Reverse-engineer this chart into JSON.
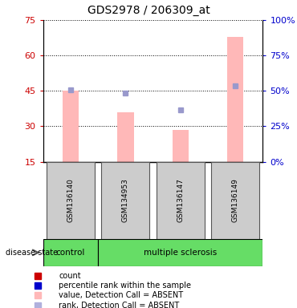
{
  "title": "GDS2978 / 206309_at",
  "samples": [
    "GSM136140",
    "GSM134953",
    "GSM136147",
    "GSM136149"
  ],
  "pink_bar_values": [
    45.0,
    36.0,
    28.5,
    68.0
  ],
  "blue_square_values": [
    45.3,
    44.0,
    37.0,
    47.0
  ],
  "bar_bottom": 15,
  "ylim_left": [
    15,
    75
  ],
  "ylim_right": [
    0,
    100
  ],
  "yticks_left": [
    15,
    30,
    45,
    60,
    75
  ],
  "yticks_right_vals": [
    0,
    25,
    50,
    75,
    100
  ],
  "yticks_right_labels": [
    "0%",
    "25%",
    "50%",
    "75%",
    "100%"
  ],
  "pink_bar_color": "#ffb8b8",
  "blue_square_color": "#9999cc",
  "left_axis_color": "#cc0000",
  "right_axis_color": "#0000cc",
  "sample_box_color": "#cccccc",
  "sample_box_edge": "#555555",
  "control_color": "#66dd66",
  "ms_color": "#66dd66",
  "legend_items": [
    {
      "label": "count",
      "color": "#cc0000"
    },
    {
      "label": "percentile rank within the sample",
      "color": "#0000cc"
    },
    {
      "label": "value, Detection Call = ABSENT",
      "color": "#ffb8b8"
    },
    {
      "label": "rank, Detection Call = ABSENT",
      "color": "#b0b0dd"
    }
  ]
}
